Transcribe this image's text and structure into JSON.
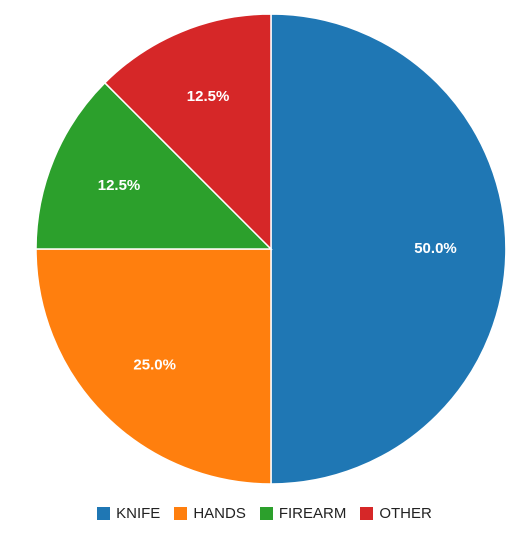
{
  "chart_data": {
    "type": "pie",
    "title": "",
    "categories": [
      "KNIFE",
      "HANDS",
      "FIREARM",
      "OTHER"
    ],
    "values": [
      50.0,
      25.0,
      12.5,
      12.5
    ],
    "labels": [
      "50.0%",
      "25.0%",
      "12.5%",
      "12.5%"
    ],
    "colors": [
      "#1f77b4",
      "#ff7f0e",
      "#2ca02c",
      "#d62728"
    ],
    "legend_position": "bottom",
    "start_angle": "top, clockwise"
  }
}
